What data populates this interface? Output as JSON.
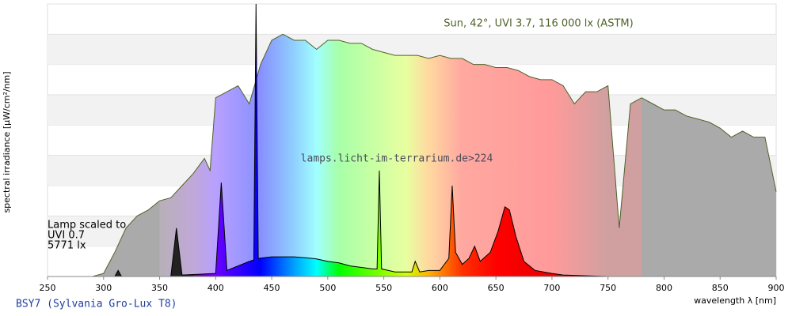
{
  "chart_data": {
    "type": "spectrum",
    "xlabel": "wavelength λ [nm]",
    "ylabel": "spectral irradiance [µW/cm²/nm]",
    "watermark": "lamps.licht-im-terrarium.de>224",
    "annotations": [
      "Lamp scaled to",
      "UVI 0.7",
      "5771 lx"
    ],
    "xlim": [
      250,
      900
    ],
    "xticks": [
      250,
      300,
      350,
      400,
      450,
      500,
      550,
      600,
      650,
      700,
      750,
      800,
      850,
      900
    ],
    "ylim": [
      0,
      9
    ],
    "yticks": [
      0,
      1,
      2,
      3,
      4,
      5,
      6,
      7,
      8,
      9
    ],
    "ytick_labels": false,
    "grid": "bands",
    "series": [
      {
        "name": "Sun, 42°, UVI 3.7, 116 000 lx (ASTM)",
        "color": "#4f6228",
        "x": [
          290,
          300,
          310,
          320,
          330,
          340,
          350,
          360,
          370,
          380,
          390,
          395,
          400,
          410,
          420,
          430,
          440,
          450,
          460,
          470,
          480,
          490,
          500,
          510,
          520,
          530,
          540,
          550,
          560,
          570,
          580,
          590,
          600,
          610,
          620,
          630,
          640,
          650,
          660,
          670,
          680,
          690,
          700,
          710,
          720,
          730,
          740,
          750,
          760,
          770,
          780,
          790,
          800,
          810,
          820,
          830,
          840,
          850,
          860,
          870,
          880,
          890,
          900
        ],
        "values": [
          0,
          0.1,
          0.8,
          1.6,
          2.0,
          2.2,
          2.5,
          2.6,
          3.0,
          3.4,
          3.9,
          3.5,
          5.9,
          6.1,
          6.3,
          5.7,
          7.0,
          7.8,
          8.0,
          7.8,
          7.8,
          7.5,
          7.8,
          7.8,
          7.7,
          7.7,
          7.5,
          7.4,
          7.3,
          7.3,
          7.3,
          7.2,
          7.3,
          7.2,
          7.2,
          7.0,
          7.0,
          6.9,
          6.9,
          6.8,
          6.6,
          6.5,
          6.5,
          6.3,
          5.7,
          6.1,
          6.1,
          6.3,
          1.6,
          5.7,
          5.9,
          5.7,
          5.5,
          5.5,
          5.3,
          5.2,
          5.1,
          4.9,
          4.6,
          4.8,
          4.6,
          4.6,
          2.8
        ]
      },
      {
        "name": "BSY7 (Sylvania Gro-Lux T8)",
        "color": "#000000",
        "x": [
          250,
          300,
          310,
          313,
          316,
          360,
          365,
          370,
          400,
          405,
          410,
          420,
          430,
          434,
          436,
          438,
          450,
          460,
          470,
          480,
          490,
          500,
          510,
          520,
          530,
          540,
          544,
          546,
          548,
          560,
          575,
          578,
          582,
          590,
          600,
          608,
          611,
          614,
          620,
          626,
          631,
          636,
          645,
          652,
          658,
          662,
          668,
          675,
          685,
          700,
          710,
          750,
          900
        ],
        "values": [
          0,
          0,
          0,
          0.2,
          0,
          0,
          1.6,
          0.05,
          0.1,
          3.1,
          0.2,
          0.35,
          0.5,
          0.55,
          9.0,
          0.6,
          0.65,
          0.65,
          0.65,
          0.62,
          0.58,
          0.5,
          0.45,
          0.35,
          0.3,
          0.25,
          0.25,
          3.5,
          0.25,
          0.15,
          0.15,
          0.5,
          0.15,
          0.2,
          0.2,
          0.6,
          3.0,
          0.8,
          0.4,
          0.6,
          1.0,
          0.5,
          0.8,
          1.5,
          2.3,
          2.2,
          1.3,
          0.5,
          0.2,
          0.1,
          0.05,
          0,
          0
        ]
      }
    ]
  }
}
